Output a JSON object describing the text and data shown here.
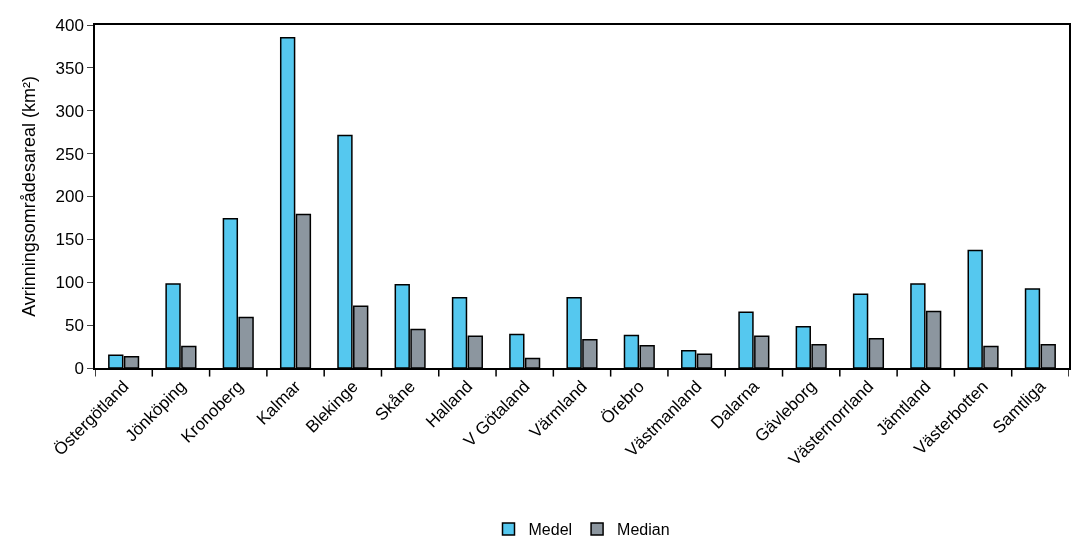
{
  "chart_data": {
    "type": "bar",
    "ylabel": "Avrinningsområdesareal (km²)",
    "categories": [
      "Östergötland",
      "Jönköping",
      "Kronoberg",
      "Kalmar",
      "Blekinge",
      "Skåne",
      "Halland",
      "V Götaland",
      "Värmland",
      "Örebro",
      "Västmanland",
      "Dalarna",
      "Gävleborg",
      "Västernorrland",
      "Jämtland",
      "Västerbotten",
      "Samtliga"
    ],
    "series": [
      {
        "name": "Medel",
        "color": "#55c8ef",
        "values": [
          15,
          98,
          174,
          385,
          271,
          97,
          82,
          39,
          82,
          38,
          20,
          65,
          48,
          86,
          98,
          137,
          92
        ]
      },
      {
        "name": "Median",
        "color": "#8c969f",
        "values": [
          13,
          25,
          59,
          179,
          72,
          45,
          37,
          11,
          33,
          26,
          16,
          37,
          27,
          34,
          66,
          25,
          27
        ]
      }
    ],
    "ylim": [
      0,
      400
    ],
    "yticks": [
      0,
      50,
      100,
      150,
      200,
      250,
      300,
      350,
      400
    ],
    "legend": "bottom"
  }
}
